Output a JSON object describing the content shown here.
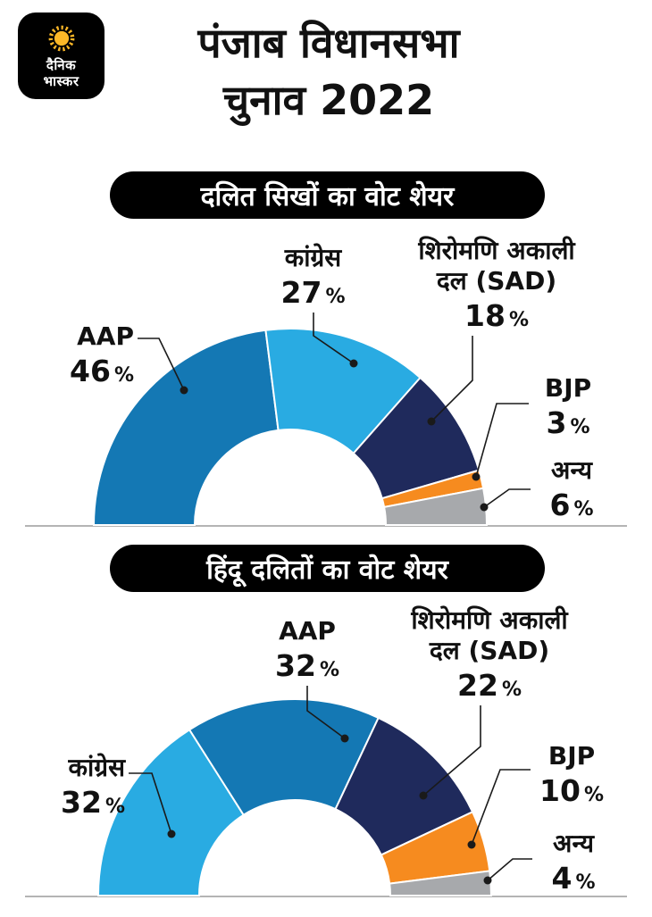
{
  "brand": {
    "logo_line1": "दैनिक",
    "logo_line2": "भास्कर",
    "sun_color": "#fdb827",
    "logo_bg": "#000000"
  },
  "header": {
    "title_line1": "पंजाब विधानसभा",
    "title_line2": "चुनाव 2022"
  },
  "chart_data": [
    {
      "type": "pie",
      "variant": "half-donut",
      "title": "दलित सिखों का वोट शेयर",
      "unit": "%",
      "total": 100,
      "legend_position": "callouts",
      "segments": [
        {
          "label": "AAP",
          "value": 46,
          "unit": "%",
          "color": "#1478b4"
        },
        {
          "label": "कांग्रेस",
          "value": 27,
          "unit": "%",
          "color": "#29abe2"
        },
        {
          "label": "शिरोमणि अकाली दल (SAD)",
          "value": 18,
          "unit": "%",
          "color": "#1f2a5c"
        },
        {
          "label": "BJP",
          "value": 3,
          "unit": "%",
          "color": "#f68b1f"
        },
        {
          "label": "अन्य",
          "value": 6,
          "unit": "%",
          "color": "#a7a9ac"
        }
      ]
    },
    {
      "type": "pie",
      "variant": "half-donut",
      "title": "हिंदू दलितों का वोट शेयर",
      "unit": "%",
      "total": 100,
      "legend_position": "callouts",
      "segments": [
        {
          "label": "कांग्रेस",
          "value": 32,
          "unit": "%",
          "color": "#29abe2"
        },
        {
          "label": "AAP",
          "value": 32,
          "unit": "%",
          "color": "#1478b4"
        },
        {
          "label": "शिरोमणि अकाली दल (SAD)",
          "value": 22,
          "unit": "%",
          "color": "#1f2a5c"
        },
        {
          "label": "BJP",
          "value": 10,
          "unit": "%",
          "color": "#f68b1f"
        },
        {
          "label": "अन्य",
          "value": 4,
          "unit": "%",
          "color": "#a7a9ac"
        }
      ]
    }
  ]
}
